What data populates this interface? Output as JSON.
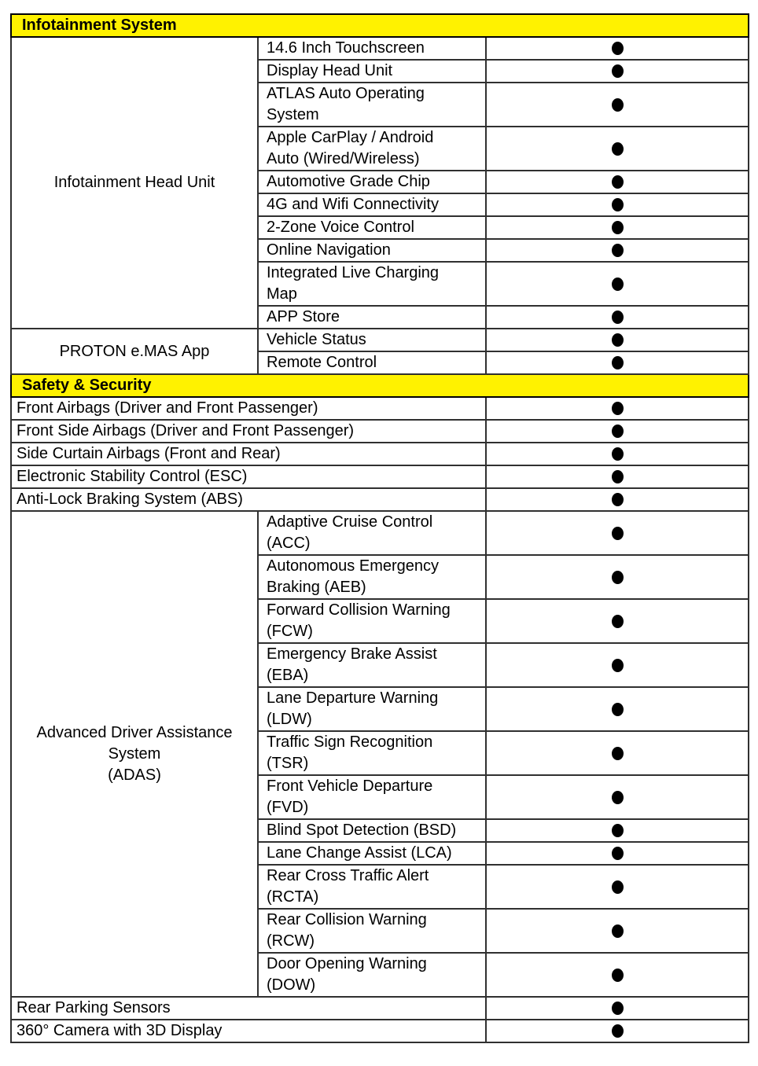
{
  "colors": {
    "section_header_bg": "#FFF200",
    "grid": "#303030",
    "outer_border": "#000000",
    "dot": "#000000"
  },
  "availability_marker": "filled-dot",
  "sections": [
    {
      "title": "Infotainment System",
      "groups": [
        {
          "category": "Infotainment Head Unit",
          "features": [
            {
              "label": "14.6 Inch Touchscreen",
              "available": true
            },
            {
              "label": "Display Head Unit",
              "available": true
            },
            {
              "label": "ATLAS Auto Operating System",
              "available": true
            },
            {
              "label": "Apple CarPlay / Android Auto (Wired/Wireless)",
              "available": true
            },
            {
              "label": "Automotive Grade Chip",
              "available": true
            },
            {
              "label": "4G and Wifi Connectivity",
              "available": true
            },
            {
              "label": "2-Zone Voice Control",
              "available": true
            },
            {
              "label": "Online Navigation",
              "available": true
            },
            {
              "label": "Integrated Live Charging Map",
              "available": true
            },
            {
              "label": "APP Store",
              "available": true
            }
          ]
        },
        {
          "category": "PROTON e.MAS App",
          "features": [
            {
              "label": "Vehicle Status",
              "available": true
            },
            {
              "label": "Remote Control",
              "available": true
            }
          ]
        }
      ]
    },
    {
      "title": "Safety & Security",
      "rows_top": [
        {
          "label": "Front Airbags (Driver and Front Passenger)",
          "available": true
        },
        {
          "label": "Front Side Airbags (Driver and Front Passenger)",
          "available": true
        },
        {
          "label": "Side Curtain Airbags (Front and Rear)",
          "available": true
        },
        {
          "label": "Electronic Stability Control (ESC)",
          "available": true
        },
        {
          "label": "Anti-Lock Braking System (ABS)",
          "available": true
        }
      ],
      "adas": {
        "category": "Advanced Driver Assistance System (ADAS)",
        "category_lines": [
          "Advanced Driver Assistance",
          "System",
          "(ADAS)"
        ],
        "features": [
          {
            "label": "Adaptive Cruise Control (ACC)",
            "available": true
          },
          {
            "label": "Autonomous Emergency Braking (AEB)",
            "available": true
          },
          {
            "label": "Forward Collision Warning (FCW)",
            "available": true
          },
          {
            "label": "Emergency Brake Assist (EBA)",
            "available": true
          },
          {
            "label": "Lane Departure Warning (LDW)",
            "available": true
          },
          {
            "label": "Traffic Sign Recognition (TSR)",
            "available": true
          },
          {
            "label": "Front Vehicle Departure (FVD)",
            "available": true
          },
          {
            "label": "Blind Spot Detection (BSD)",
            "available": true
          },
          {
            "label": "Lane Change Assist (LCA)",
            "available": true
          },
          {
            "label": "Rear Cross Traffic Alert (RCTA)",
            "available": true
          },
          {
            "label": "Rear Collision Warning (RCW)",
            "available": true
          },
          {
            "label": "Door Opening Warning (DOW)",
            "available": true
          }
        ]
      },
      "rows_bottom": [
        {
          "label": "Rear Parking Sensors",
          "available": true
        },
        {
          "label": "360° Camera with 3D Display",
          "available": true
        }
      ]
    }
  ]
}
